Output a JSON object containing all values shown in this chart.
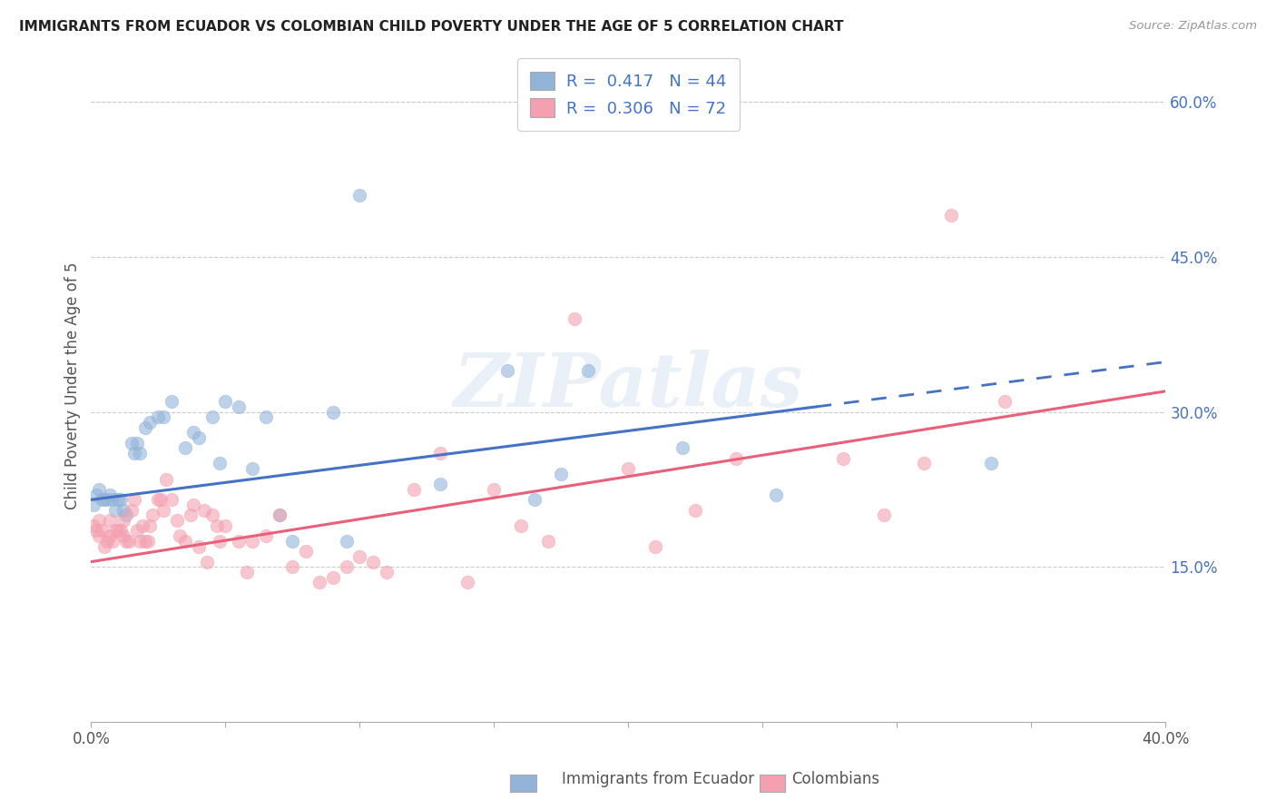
{
  "title": "IMMIGRANTS FROM ECUADOR VS COLOMBIAN CHILD POVERTY UNDER THE AGE OF 5 CORRELATION CHART",
  "source": "Source: ZipAtlas.com",
  "ylabel": "Child Poverty Under the Age of 5",
  "xlim": [
    0.0,
    0.4
  ],
  "ylim": [
    0.0,
    0.65
  ],
  "yticks_right": [
    0.15,
    0.3,
    0.45,
    0.6
  ],
  "ytick_right_labels": [
    "15.0%",
    "30.0%",
    "45.0%",
    "60.0%"
  ],
  "grid_color": "#cccccc",
  "background_color": "#ffffff",
  "watermark": "ZIPatlas",
  "legend_R1": "0.417",
  "legend_N1": "44",
  "legend_R2": "0.306",
  "legend_N2": "72",
  "color_blue": "#92b4d9",
  "color_pink": "#f4a0b0",
  "color_blue_line": "#4472c4",
  "color_pink_line": "#e8607a",
  "ecuador_x": [
    0.001,
    0.002,
    0.003,
    0.004,
    0.005,
    0.006,
    0.007,
    0.008,
    0.009,
    0.01,
    0.011,
    0.012,
    0.013,
    0.015,
    0.016,
    0.017,
    0.018,
    0.02,
    0.022,
    0.025,
    0.027,
    0.03,
    0.035,
    0.038,
    0.04,
    0.045,
    0.048,
    0.05,
    0.055,
    0.06,
    0.065,
    0.07,
    0.075,
    0.09,
    0.095,
    0.1,
    0.13,
    0.155,
    0.165,
    0.175,
    0.185,
    0.22,
    0.255,
    0.335
  ],
  "ecuador_y": [
    0.21,
    0.22,
    0.225,
    0.215,
    0.215,
    0.215,
    0.22,
    0.215,
    0.205,
    0.215,
    0.215,
    0.205,
    0.2,
    0.27,
    0.26,
    0.27,
    0.26,
    0.285,
    0.29,
    0.295,
    0.295,
    0.31,
    0.265,
    0.28,
    0.275,
    0.295,
    0.25,
    0.31,
    0.305,
    0.245,
    0.295,
    0.2,
    0.175,
    0.3,
    0.175,
    0.51,
    0.23,
    0.34,
    0.215,
    0.24,
    0.34,
    0.265,
    0.22,
    0.25
  ],
  "colombia_x": [
    0.001,
    0.002,
    0.003,
    0.003,
    0.004,
    0.005,
    0.006,
    0.007,
    0.007,
    0.008,
    0.009,
    0.01,
    0.011,
    0.012,
    0.012,
    0.013,
    0.014,
    0.015,
    0.016,
    0.017,
    0.018,
    0.019,
    0.02,
    0.021,
    0.022,
    0.023,
    0.025,
    0.026,
    0.027,
    0.028,
    0.03,
    0.032,
    0.033,
    0.035,
    0.037,
    0.038,
    0.04,
    0.042,
    0.043,
    0.045,
    0.047,
    0.048,
    0.05,
    0.055,
    0.058,
    0.06,
    0.065,
    0.07,
    0.075,
    0.08,
    0.085,
    0.09,
    0.095,
    0.1,
    0.105,
    0.11,
    0.12,
    0.13,
    0.14,
    0.15,
    0.16,
    0.17,
    0.18,
    0.2,
    0.21,
    0.225,
    0.24,
    0.28,
    0.295,
    0.31,
    0.32,
    0.34
  ],
  "colombia_y": [
    0.19,
    0.185,
    0.18,
    0.195,
    0.185,
    0.17,
    0.175,
    0.18,
    0.195,
    0.175,
    0.185,
    0.185,
    0.185,
    0.18,
    0.195,
    0.175,
    0.175,
    0.205,
    0.215,
    0.185,
    0.175,
    0.19,
    0.175,
    0.175,
    0.19,
    0.2,
    0.215,
    0.215,
    0.205,
    0.235,
    0.215,
    0.195,
    0.18,
    0.175,
    0.2,
    0.21,
    0.17,
    0.205,
    0.155,
    0.2,
    0.19,
    0.175,
    0.19,
    0.175,
    0.145,
    0.175,
    0.18,
    0.2,
    0.15,
    0.165,
    0.135,
    0.14,
    0.15,
    0.16,
    0.155,
    0.145,
    0.225,
    0.26,
    0.135,
    0.225,
    0.19,
    0.175,
    0.39,
    0.245,
    0.17,
    0.205,
    0.255,
    0.255,
    0.2,
    0.25,
    0.49,
    0.31
  ],
  "blue_trend_x0": 0.0,
  "blue_trend_x1": 0.27,
  "blue_trend_x_dash0": 0.27,
  "blue_trend_x_dash1": 0.4,
  "blue_trend_y0": 0.215,
  "blue_trend_y1": 0.305,
  "pink_trend_x0": 0.0,
  "pink_trend_x1": 0.4,
  "pink_trend_y0": 0.155,
  "pink_trend_y1": 0.32
}
